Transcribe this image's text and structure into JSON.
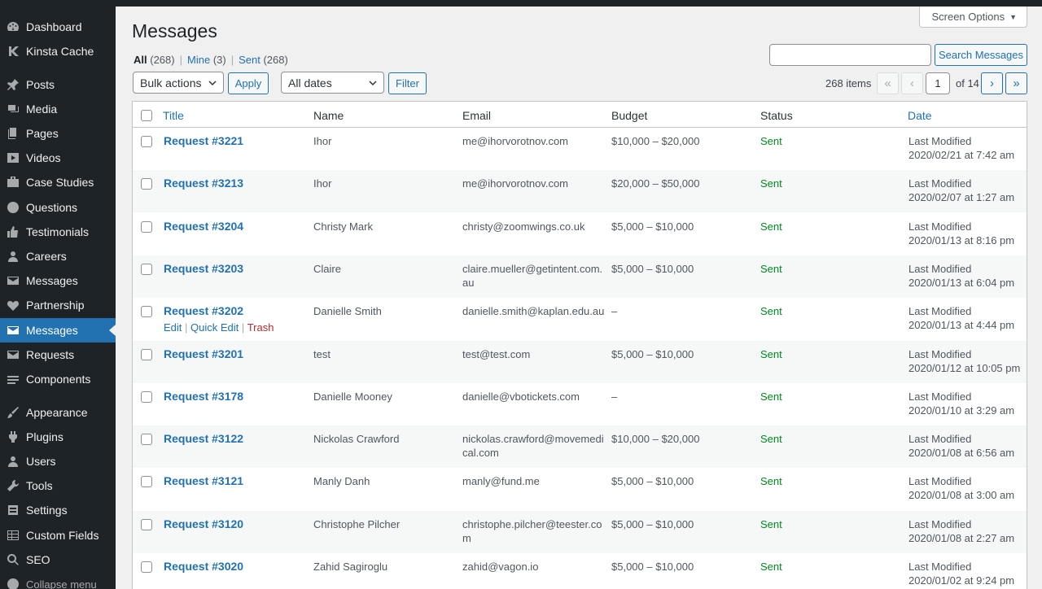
{
  "sidebar": {
    "items": [
      {
        "label": "Dashboard",
        "icon": "dashboard-icon"
      },
      {
        "label": "Kinsta Cache",
        "icon": "kinsta-icon"
      },
      {
        "label": "Posts",
        "icon": "pushpin-icon"
      },
      {
        "label": "Media",
        "icon": "media-icon"
      },
      {
        "label": "Pages",
        "icon": "pages-icon"
      },
      {
        "label": "Videos",
        "icon": "video-icon"
      },
      {
        "label": "Case Studies",
        "icon": "portfolio-icon"
      },
      {
        "label": "Questions",
        "icon": "help-icon"
      },
      {
        "label": "Testimonials",
        "icon": "thumbs-up-icon"
      },
      {
        "label": "Careers",
        "icon": "users-icon"
      },
      {
        "label": "Messages",
        "icon": "envelope-icon"
      },
      {
        "label": "Partnership",
        "icon": "heart-icon"
      },
      {
        "label": "Messages",
        "icon": "envelope-icon",
        "current": true
      },
      {
        "label": "Requests",
        "icon": "envelope-icon"
      },
      {
        "label": "Components",
        "icon": "components-icon"
      },
      {
        "label": "Appearance",
        "icon": "paintbrush-icon"
      },
      {
        "label": "Plugins",
        "icon": "plugin-icon"
      },
      {
        "label": "Users",
        "icon": "user-icon"
      },
      {
        "label": "Tools",
        "icon": "wrench-icon"
      },
      {
        "label": "Settings",
        "icon": "settings-icon"
      },
      {
        "label": "Custom Fields",
        "icon": "grid-icon"
      },
      {
        "label": "SEO",
        "icon": "search-icon"
      },
      {
        "label": "Collapse menu",
        "icon": "collapse-icon"
      }
    ]
  },
  "header": {
    "screen_options": "Screen Options",
    "title": "Messages"
  },
  "views": {
    "all": "All",
    "all_count": "(268)",
    "mine": "Mine",
    "mine_count": "(3)",
    "sent": "Sent",
    "sent_count": "(268)",
    "sep": "|"
  },
  "toolbar": {
    "bulk_actions": "Bulk actions",
    "apply": "Apply",
    "dates": "All dates",
    "filter": "Filter",
    "search_button": "Search Messages",
    "search_value": ""
  },
  "pagination": {
    "items": "268 items",
    "first": "«",
    "prev": "‹",
    "next": "›",
    "last": "»",
    "current_page": "1",
    "of": "of 14"
  },
  "table": {
    "columns": [
      "Title",
      "Name",
      "Email",
      "Budget",
      "Status",
      "Date"
    ],
    "row_actions": {
      "edit": "Edit",
      "quick_edit": "Quick Edit",
      "trash": "Trash",
      "sep": "|"
    },
    "rows": [
      {
        "title": "Request #3221",
        "name": "Ihor",
        "email": [
          "me@ihorvorotnov.com"
        ],
        "budget": "$10,000 – $20,000",
        "status": "Sent",
        "date_label": "Last Modified",
        "date": "2020/02/21 at 7:42 am"
      },
      {
        "title": "Request #3213",
        "name": "Ihor",
        "email": [
          "me@ihorvorotnov.com"
        ],
        "budget": "$20,000 – $50,000",
        "status": "Sent",
        "date_label": "Last Modified",
        "date": "2020/02/07 at 1:27 am"
      },
      {
        "title": "Request #3204",
        "name": "Christy Mark",
        "email": [
          "christy@zoomwings.co.uk"
        ],
        "budget": "$5,000 – $10,000",
        "status": "Sent",
        "date_label": "Last Modified",
        "date": "2020/01/13 at 8:16 pm"
      },
      {
        "title": "Request #3203",
        "name": "Claire",
        "email": [
          "claire.mueller@getintent.com.",
          "au"
        ],
        "budget": "$5,000 – $10,000",
        "status": "Sent",
        "date_label": "Last Modified",
        "date": "2020/01/13 at 6:04 pm"
      },
      {
        "title": "Request #3202",
        "name": "Danielle Smith",
        "email": [
          "danielle.smith@kaplan.edu.au"
        ],
        "budget": "–",
        "status": "Sent",
        "date_label": "Last Modified",
        "date": "2020/01/13 at 4:44 pm",
        "hover": true
      },
      {
        "title": "Request #3201",
        "name": "test",
        "email": [
          "test@test.com"
        ],
        "budget": "$5,000 – $10,000",
        "status": "Sent",
        "date_label": "Last Modified",
        "date": "2020/01/12 at 10:05 pm"
      },
      {
        "title": "Request #3178",
        "name": "Danielle Mooney",
        "email": [
          "danielle@vbotickets.com"
        ],
        "budget": "–",
        "status": "Sent",
        "date_label": "Last Modified",
        "date": "2020/01/10 at 3:29 am"
      },
      {
        "title": "Request #3122",
        "name": "Nickolas Crawford",
        "email": [
          "nickolas.crawford@movemedi",
          "cal.com"
        ],
        "budget": "$10,000 – $20,000",
        "status": "Sent",
        "date_label": "Last Modified",
        "date": "2020/01/08 at 6:56 am"
      },
      {
        "title": "Request #3121",
        "name": "Manly Danh",
        "email": [
          "manly@fund.me"
        ],
        "budget": "$5,000 – $10,000",
        "status": "Sent",
        "date_label": "Last Modified",
        "date": "2020/01/08 at 3:00 am"
      },
      {
        "title": "Request #3120",
        "name": "Christophe Pilcher",
        "email": [
          "christophe.pilcher@teester.co",
          "m"
        ],
        "budget": "$5,000 – $10,000",
        "status": "Sent",
        "date_label": "Last Modified",
        "date": "2020/01/08 at 2:27 am"
      },
      {
        "title": "Request #3020",
        "name": "Zahid Sagiroglu",
        "email": [
          "zahid@vagon.io"
        ],
        "budget": "$5,000 – $10,000",
        "status": "Sent",
        "date_label": "Last Modified",
        "date": "2020/01/02 at 9:24 pm"
      }
    ]
  },
  "colors": {
    "sidebar_bg": "#1d2327",
    "accent": "#2271b1",
    "status_sent": "#008a20",
    "trash": "#b32d2e"
  }
}
